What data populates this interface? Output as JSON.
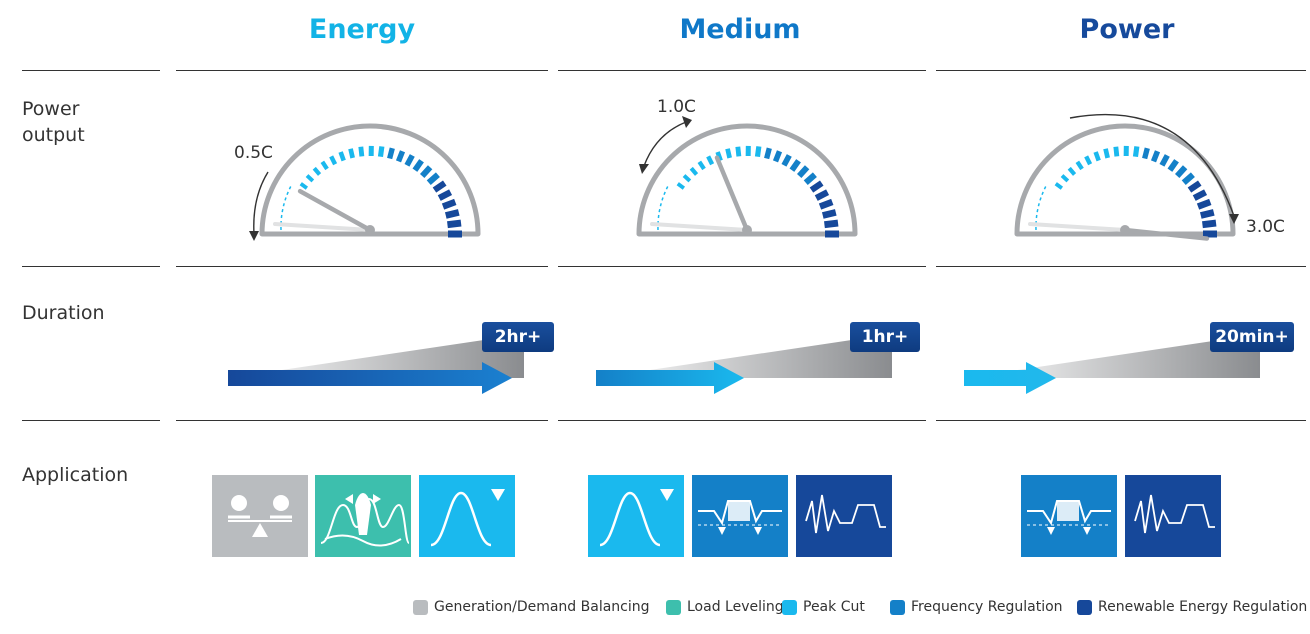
{
  "columns": [
    {
      "title": "Energy",
      "color": "#12b3e6",
      "c_rate": "0.5C",
      "duration": "2hr+"
    },
    {
      "title": "Medium",
      "color": "#0f78c8",
      "c_rate": "1.0C",
      "duration": "1hr+"
    },
    {
      "title": "Power",
      "color": "#164a9c",
      "c_rate": "3.0C",
      "duration": "20min+"
    }
  ],
  "rows": {
    "power_output": "Power\noutput",
    "duration": "Duration",
    "application": "Application"
  },
  "gauges": [
    {
      "c_rate_value": 0.5,
      "needle_fraction": 0.12
    },
    {
      "c_rate_value": 1.0,
      "needle_fraction": 0.33
    },
    {
      "c_rate_value": 3.0,
      "needle_fraction": 0.98
    }
  ],
  "applications": [
    [
      "generation-demand-balancing",
      "load-leveling",
      "peak-cut"
    ],
    [
      "peak-cut",
      "frequency-regulation",
      "renewable-energy-regulation"
    ],
    [
      "frequency-regulation",
      "renewable-energy-regulation"
    ]
  ],
  "legend": [
    {
      "label": "Generation/Demand Balancing",
      "color": "#b9bcbf"
    },
    {
      "label": "Load Leveling",
      "color": "#3dbfad"
    },
    {
      "label": "Peak Cut",
      "color": "#1ab9ee"
    },
    {
      "label": "Frequency Regulation",
      "color": "#1480c8"
    },
    {
      "label": "Renewable Energy Regulation",
      "color": "#16489a"
    }
  ],
  "colors": {
    "gray_tile": "#b9bcbf",
    "teal_tile": "#3dbfad",
    "light_blue_tile": "#1ab9ee",
    "mid_blue_tile": "#1480c8",
    "dark_blue_tile": "#16489a"
  }
}
